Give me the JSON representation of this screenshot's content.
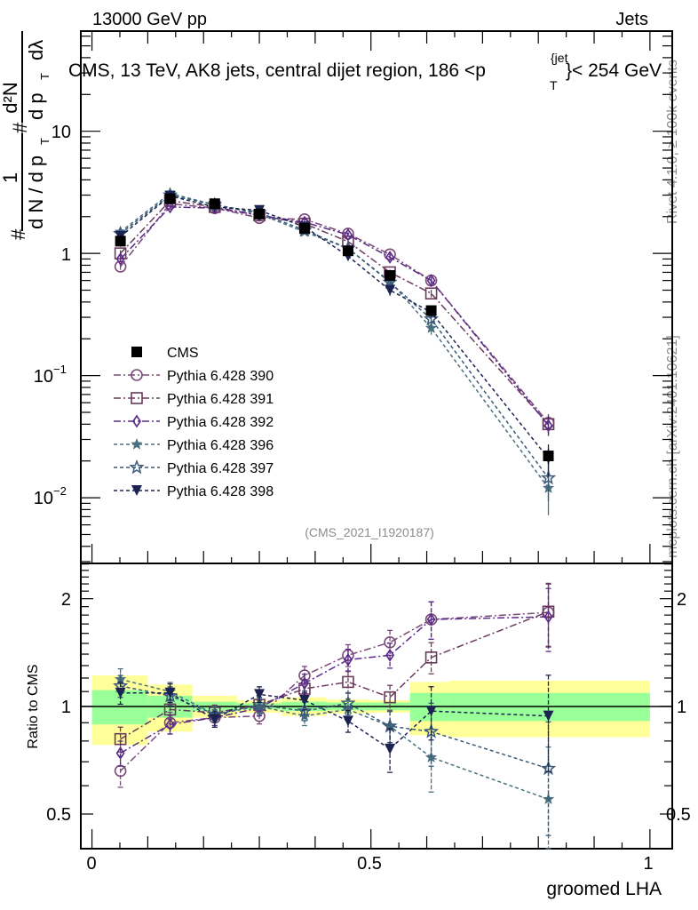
{
  "header": {
    "left_label": "13000 GeV pp",
    "right_label": "Jets"
  },
  "side_labels": {
    "rivet": "Rivet 4.1.0, ≥ 100k events",
    "mcplots": "mcplots.cern.ch [arXiv:2401.10621]"
  },
  "chart_data": [
    {
      "type": "line",
      "panel": "main",
      "title": "CMS, 13 TeV, AK8 jets, central dijet region, 186 <p_T^{jet}< 254 GeV",
      "title_parts": {
        "prefix": "CMS, 13 TeV, AK8 jets, central dijet region, 186 <p",
        "sub": "T",
        "sup": "{jet",
        "suffix": "}< 254 GeV"
      },
      "ylabel_parts": {
        "hash1": "#",
        "num1": "1",
        "den1": "d N / d p",
        "den1_sub": "T",
        "hash2": "#",
        "num2": "d²N",
        "den2": "d p",
        "den2_sub": "T",
        "den2_tail": "dλ"
      },
      "xlabel": "groomed LHA",
      "yscale": "log",
      "ylim": [
        0.0029,
        66
      ],
      "xlim": [
        -0.02,
        1.04
      ],
      "ytick_labels": [
        {
          "value": 10,
          "label": "10"
        },
        {
          "value": 1,
          "label": "1"
        },
        {
          "value": 0.1,
          "label": "10",
          "exp": "−1"
        },
        {
          "value": 0.01,
          "label": "10",
          "exp": "−2"
        }
      ],
      "annotation": "(CMS_2021_I1920187)",
      "legend_position": "center-left",
      "x": [
        0.051,
        0.14,
        0.22,
        0.3,
        0.381,
        0.459,
        0.534,
        0.608,
        0.818
      ],
      "series": [
        {
          "name": "CMS",
          "marker": "square-filled",
          "color": "#000000",
          "dash": "none",
          "values": [
            1.26,
            2.8,
            2.55,
            2.1,
            1.6,
            1.05,
            0.66,
            0.34,
            0.022
          ],
          "rel_err": [
            0.1,
            0.06,
            0.04,
            0.03,
            0.04,
            0.04,
            0.04,
            0.09,
            0.14
          ]
        },
        {
          "name": "Pythia 6.428 390",
          "marker": "circle-open",
          "color": "#7a4a7a",
          "dash": "8,3,2,3",
          "values": [
            0.78,
            2.55,
            2.35,
            1.95,
            1.9,
            1.45,
            0.98,
            0.6,
            0.041
          ],
          "rel_err": [
            0.06,
            0.03,
            0.03,
            0.03,
            0.03,
            0.04,
            0.05,
            0.06,
            0.18
          ]
        },
        {
          "name": "Pythia 6.428 391",
          "marker": "square-open",
          "color": "#6b3a5e",
          "dash": "8,3,2,3",
          "values": [
            1.0,
            2.7,
            2.4,
            2.05,
            1.75,
            1.25,
            0.7,
            0.47,
            0.04
          ],
          "rel_err": [
            0.06,
            0.03,
            0.03,
            0.03,
            0.03,
            0.04,
            0.05,
            0.07,
            0.18
          ]
        },
        {
          "name": "Pythia 6.428 392",
          "marker": "diamond-open",
          "color": "#5a2a8a",
          "dash": "8,3,2,3",
          "values": [
            0.9,
            2.4,
            2.35,
            2.05,
            1.8,
            1.42,
            0.93,
            0.6,
            0.039
          ],
          "rel_err": [
            0.06,
            0.03,
            0.03,
            0.03,
            0.03,
            0.04,
            0.05,
            0.06,
            0.18
          ]
        },
        {
          "name": "Pythia 6.428 396",
          "marker": "star-filled",
          "color": "#4a7080",
          "dash": "4,3",
          "values": [
            1.5,
            3.1,
            2.5,
            2.1,
            1.5,
            1.1,
            0.59,
            0.245,
            0.012
          ],
          "rel_err": [
            0.05,
            0.03,
            0.03,
            0.03,
            0.04,
            0.05,
            0.08,
            0.12,
            0.4
          ]
        },
        {
          "name": "Pythia 6.428 397",
          "marker": "star-open",
          "color": "#3a5a78",
          "dash": "4,3",
          "values": [
            1.45,
            3.0,
            2.5,
            2.15,
            1.55,
            1.1,
            0.58,
            0.29,
            0.0145
          ],
          "rel_err": [
            0.05,
            0.03,
            0.03,
            0.03,
            0.04,
            0.05,
            0.08,
            0.12,
            0.35
          ]
        },
        {
          "name": "Pythia 6.428 398",
          "marker": "triangle-down-filled",
          "color": "#1c2350",
          "dash": "4,3",
          "values": [
            1.38,
            2.95,
            2.4,
            2.25,
            1.65,
            0.95,
            0.5,
            0.33,
            0.021
          ],
          "rel_err": [
            0.05,
            0.03,
            0.03,
            0.03,
            0.04,
            0.05,
            0.1,
            0.1,
            0.3
          ]
        }
      ]
    },
    {
      "type": "line",
      "panel": "ratio",
      "ylabel": "Ratio to CMS",
      "xlabel": "groomed LHA",
      "yscale": "log",
      "ylim": [
        0.4,
        2.51
      ],
      "xlim": [
        -0.02,
        1.04
      ],
      "ytick_labels": [
        {
          "value": 2,
          "label": "2"
        },
        {
          "value": 1,
          "label": "1"
        },
        {
          "value": 0.5,
          "label": "0.5"
        }
      ],
      "xtick_labels": [
        {
          "value": 0,
          "label": "0"
        },
        {
          "value": 0.5,
          "label": "0.5"
        },
        {
          "value": 1,
          "label": "1"
        }
      ],
      "bin_edges": [
        0.0,
        0.1,
        0.18,
        0.26,
        0.34,
        0.42,
        0.5,
        0.57,
        0.64,
        1.0
      ],
      "band_inner": [
        0.11,
        0.07,
        0.03,
        0.02,
        0.03,
        0.025,
        0.025,
        0.09,
        0.09
      ],
      "band_outer": [
        0.22,
        0.15,
        0.07,
        0.04,
        0.06,
        0.045,
        0.04,
        0.17,
        0.18
      ],
      "x": [
        0.051,
        0.14,
        0.22,
        0.3,
        0.381,
        0.459,
        0.534,
        0.608,
        0.818
      ],
      "series": [
        {
          "name": "Pythia 6.428 390",
          "values": [
            0.66,
            0.9,
            0.93,
            0.94,
            1.22,
            1.39,
            1.51,
            1.75,
            1.83
          ],
          "rel_err": [
            0.1,
            0.07,
            0.05,
            0.05,
            0.06,
            0.07,
            0.08,
            0.12,
            0.2
          ]
        },
        {
          "name": "Pythia 6.428 391",
          "values": [
            0.81,
            0.98,
            0.96,
            1.01,
            1.12,
            1.17,
            1.06,
            1.37,
            1.84
          ],
          "rel_err": [
            0.08,
            0.06,
            0.05,
            0.05,
            0.06,
            0.07,
            0.08,
            0.1,
            0.2
          ]
        },
        {
          "name": "Pythia 6.428 392",
          "values": [
            0.74,
            0.89,
            0.93,
            0.99,
            1.16,
            1.35,
            1.39,
            1.75,
            1.78
          ],
          "rel_err": [
            0.08,
            0.06,
            0.05,
            0.05,
            0.06,
            0.07,
            0.08,
            0.12,
            0.2
          ]
        },
        {
          "name": "Pythia 6.428 396",
          "values": [
            1.19,
            1.1,
            0.95,
            1.0,
            0.94,
            0.98,
            0.88,
            0.72,
            0.55
          ],
          "rel_err": [
            0.07,
            0.06,
            0.05,
            0.05,
            0.06,
            0.07,
            0.1,
            0.2,
            0.4
          ]
        },
        {
          "name": "Pythia 6.428 397",
          "values": [
            1.14,
            1.07,
            0.95,
            1.01,
            0.97,
            1.02,
            0.88,
            0.85,
            0.67
          ],
          "rel_err": [
            0.07,
            0.06,
            0.05,
            0.05,
            0.06,
            0.07,
            0.1,
            0.2,
            0.35
          ]
        },
        {
          "name": "Pythia 6.428 398",
          "values": [
            1.09,
            1.09,
            0.92,
            1.08,
            1.04,
            0.91,
            0.76,
            0.97,
            0.94
          ],
          "rel_err": [
            0.07,
            0.06,
            0.05,
            0.05,
            0.06,
            0.07,
            0.14,
            0.17,
            0.3
          ]
        }
      ]
    }
  ]
}
